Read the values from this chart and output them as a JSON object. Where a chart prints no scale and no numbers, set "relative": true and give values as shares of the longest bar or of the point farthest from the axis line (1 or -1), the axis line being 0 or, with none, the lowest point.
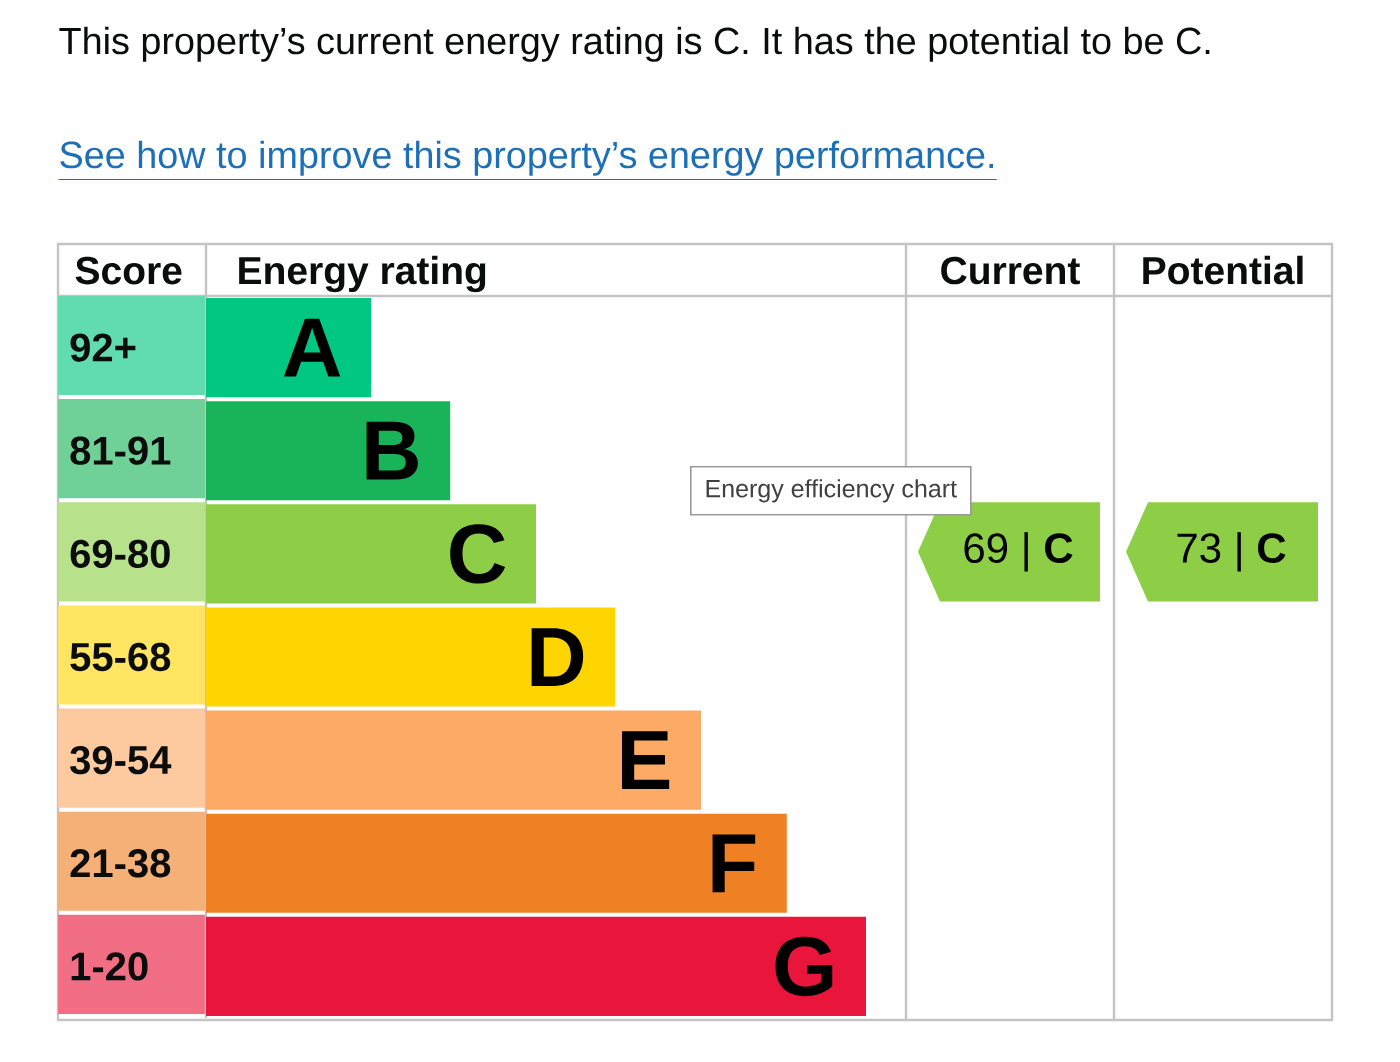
{
  "chart_data": {
    "type": "bar",
    "orientation": "horizontal",
    "relative": true,
    "title": "This property’s current energy rating is C. It has the potential to be C.",
    "subtitle": "See how to improve this property’s energy performance.",
    "xlabel": "Energy rating",
    "ylabel": "Score",
    "categories": [
      "92+",
      "81-91",
      "69-80",
      "55-68",
      "39-54",
      "21-38",
      "1-20"
    ],
    "values": [
      0.25,
      0.37,
      0.5,
      0.62,
      0.75,
      0.88,
      1
    ],
    "colors": [
      "#00c781",
      "#19b459",
      "#8dce46",
      "#ffd500",
      "#fcaa65",
      "#ef8023",
      "#e9153b"
    ],
    "annotations": [
      "Current",
      "Potential",
      "69 | **C**",
      "73 | **C**",
      "Energy efficiency chart",
      {
        "text": "A",
        "x": 0.25,
        "y": "92+"
      },
      {
        "text": "B",
        "x": 0.37,
        "y": "81-91"
      },
      {
        "text": "C",
        "x": 0.5,
        "y": "69-80"
      },
      {
        "text": "D",
        "x": 0.62,
        "y": "55-68"
      },
      {
        "text": "E",
        "x": 0.75,
        "y": "39-54"
      },
      {
        "text": "F",
        "x": 0.88,
        "y": "21-38"
      },
      {
        "text": "G",
        "x": 1,
        "y": "1-20"
      }
    ]
  }
}
